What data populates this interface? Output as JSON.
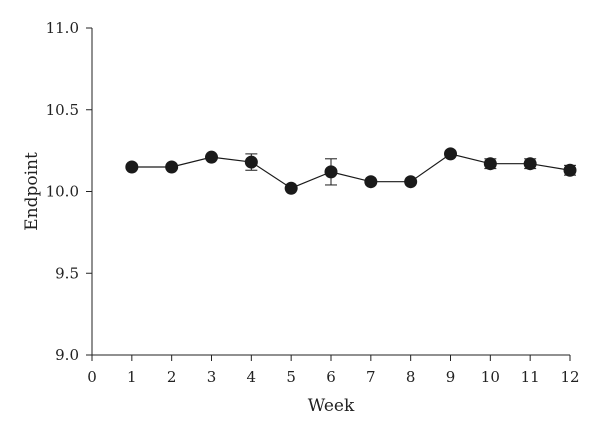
{
  "chart_data": {
    "type": "line",
    "title": "",
    "xlabel": "Week",
    "ylabel": "Endpoint",
    "xlim": [
      0,
      12
    ],
    "ylim": [
      9.0,
      11.0
    ],
    "xticks": [
      "0",
      "1",
      "2",
      "3",
      "4",
      "5",
      "6",
      "7",
      "8",
      "9",
      "10",
      "11",
      "12"
    ],
    "yticks": [
      "9.0",
      "9.5",
      "10.0",
      "10.5",
      "11.0"
    ],
    "grid": false,
    "legend": "none",
    "series": [
      {
        "x": [
          1,
          2,
          3,
          4,
          5,
          6,
          7,
          8,
          9,
          10,
          11,
          12
        ],
        "y": [
          10.15,
          10.15,
          10.21,
          10.18,
          10.02,
          10.12,
          10.06,
          10.06,
          10.23,
          10.17,
          10.17,
          10.13
        ],
        "error": [
          0.0,
          0.0,
          0.0,
          0.05,
          0.0,
          0.08,
          0.0,
          0.0,
          0.0,
          0.03,
          0.03,
          0.03
        ],
        "color": "#1a1a1a",
        "marker": "circle"
      }
    ]
  }
}
